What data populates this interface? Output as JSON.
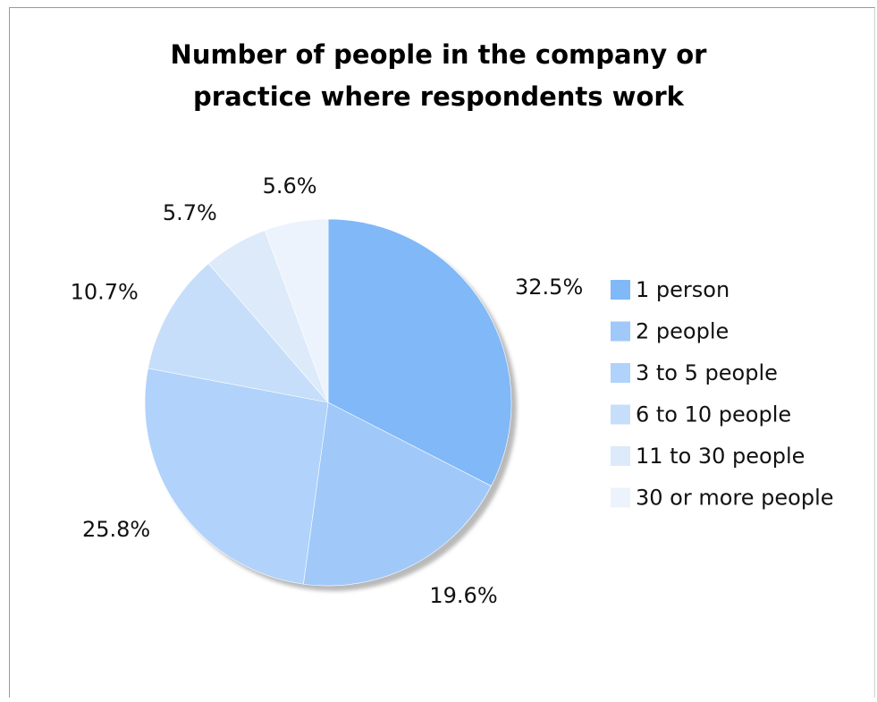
{
  "chart_data": {
    "type": "pie",
    "title": [
      "Number of people in the company or",
      "practice where respondents work"
    ],
    "categories": [
      "1 person",
      "2 people",
      "3 to 5 people",
      "6 to 10 people",
      "11 to 30 people",
      "30 or more people"
    ],
    "values": [
      32.5,
      19.6,
      25.8,
      10.7,
      5.7,
      5.6
    ],
    "value_labels": [
      "32.5%",
      "19.6%",
      "25.8%",
      "10.7%",
      "5.7%",
      "5.6%"
    ],
    "colors": [
      "#80b8f8",
      "#a0c9fa",
      "#b0d2fb",
      "#c6def9",
      "#dceafa",
      "#ecf3fc"
    ],
    "start": "12 o'clock",
    "direction": "clockwise",
    "legend_position": "right"
  }
}
